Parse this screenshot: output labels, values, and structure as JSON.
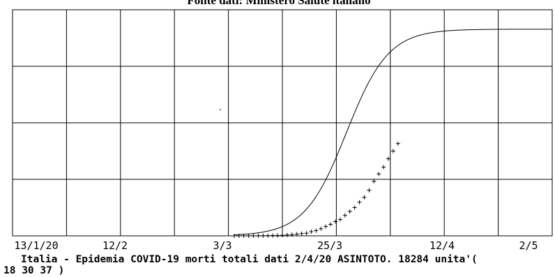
{
  "chart_data": {
    "type": "line",
    "title": "Fonte dati: Ministero Salute italiano",
    "x_tick_labels": [
      "13/1/20",
      "12/2",
      "3/3",
      "25/3",
      "12/4",
      "2/5"
    ],
    "caption_line1": "Italia - Epidemia COVID-19 morti totali dati 2/4/20 ASINTOTO.  18284 unita'(",
    "caption_line2": "18  30  37 )",
    "x_unit": "days since 13/1/20",
    "xlim": [
      0,
      112
    ],
    "ylim": [
      0,
      20000
    ],
    "grid": true,
    "series": [
      {
        "kind": "model_curve",
        "style": "line",
        "color": "#000000",
        "asymptote": 18284,
        "midpoint_day": 69.3,
        "scale_days": 4.35,
        "x_start": 46,
        "x_end": 112
      },
      {
        "kind": "observed",
        "style": "markers",
        "marker": "+",
        "color": "#000000",
        "x": [
          46,
          47,
          48,
          49,
          50,
          51,
          52,
          53,
          54,
          55,
          56,
          57,
          58,
          59,
          60,
          61,
          62,
          63,
          64,
          65,
          66,
          67,
          68,
          69,
          70,
          71,
          72,
          73,
          74,
          75,
          76,
          77,
          78,
          79,
          80
        ],
        "values": [
          1,
          2,
          3,
          7,
          10,
          12,
          17,
          21,
          29,
          34,
          52,
          79,
          107,
          148,
          197,
          233,
          366,
          463,
          631,
          827,
          1016,
          1266,
          1441,
          1809,
          2158,
          2503,
          2978,
          3405,
          4032,
          4825,
          5476,
          6077,
          6820,
          7503,
          8165
        ]
      }
    ],
    "stray_point": {
      "x": 43,
      "y": 11200
    }
  }
}
